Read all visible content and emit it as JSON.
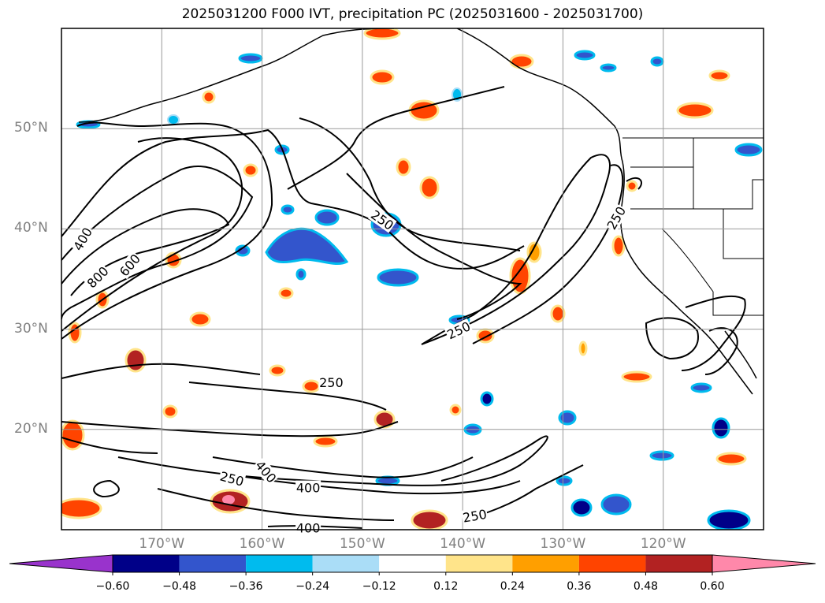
{
  "title": "2025031200 F000 IVT, precipitation PC (2025031600 - 2025031700)",
  "map": {
    "lon_range": [
      -180,
      -110
    ],
    "lat_range": [
      10,
      60
    ],
    "lat_ticks": [
      {
        "value": 50,
        "label": "50°N"
      },
      {
        "value": 40,
        "label": "40°N"
      },
      {
        "value": 30,
        "label": "30°N"
      },
      {
        "value": 20,
        "label": "20°N"
      }
    ],
    "lon_ticks": [
      {
        "value": -170,
        "label": "170°W"
      },
      {
        "value": -160,
        "label": "160°W"
      },
      {
        "value": -150,
        "label": "150°W"
      },
      {
        "value": -140,
        "label": "140°W"
      },
      {
        "value": -130,
        "label": "130°W"
      },
      {
        "value": -120,
        "label": "120°W"
      }
    ],
    "gridlines": true,
    "contour_labels": [
      {
        "text": "400",
        "lon": -177.9,
        "lat": 39.0,
        "angle": -60
      },
      {
        "text": "800",
        "lon": -176.4,
        "lat": 35.2,
        "angle": -45
      },
      {
        "text": "600",
        "lon": -173.2,
        "lat": 36.4,
        "angle": -50
      },
      {
        "text": "250",
        "lon": -148.0,
        "lat": 40.9,
        "angle": 35
      },
      {
        "text": "250",
        "lon": -124.7,
        "lat": 41.1,
        "angle": -60
      },
      {
        "text": "250",
        "lon": -140.4,
        "lat": 29.9,
        "angle": -25
      },
      {
        "text": "250",
        "lon": -153.1,
        "lat": 24.7,
        "angle": 0
      },
      {
        "text": "250",
        "lon": -163.0,
        "lat": 15.1,
        "angle": 15
      },
      {
        "text": "400",
        "lon": -159.6,
        "lat": 15.8,
        "angle": 50
      },
      {
        "text": "400",
        "lon": -155.4,
        "lat": 14.2,
        "angle": 0
      },
      {
        "text": "400",
        "lon": -155.4,
        "lat": 10.2,
        "angle": 0
      },
      {
        "text": "250",
        "lon": -138.8,
        "lat": 11.4,
        "angle": -10
      }
    ]
  },
  "colorbar": {
    "ticks": [
      "−0.60",
      "−0.48",
      "−0.36",
      "−0.24",
      "−0.12",
      "0.12",
      "0.24",
      "0.36",
      "0.48",
      "0.60"
    ],
    "bins": [
      {
        "color": "#9933cc"
      },
      {
        "color": "#000088"
      },
      {
        "color": "#3355cc"
      },
      {
        "color": "#00bbee"
      },
      {
        "color": "#aaddf7"
      },
      {
        "color": "#ffffff"
      },
      {
        "color": "#ffe48a"
      },
      {
        "color": "#ff9f00"
      },
      {
        "color": "#ff4400"
      },
      {
        "color": "#b22222"
      },
      {
        "color": "#ff88aa"
      }
    ]
  }
}
